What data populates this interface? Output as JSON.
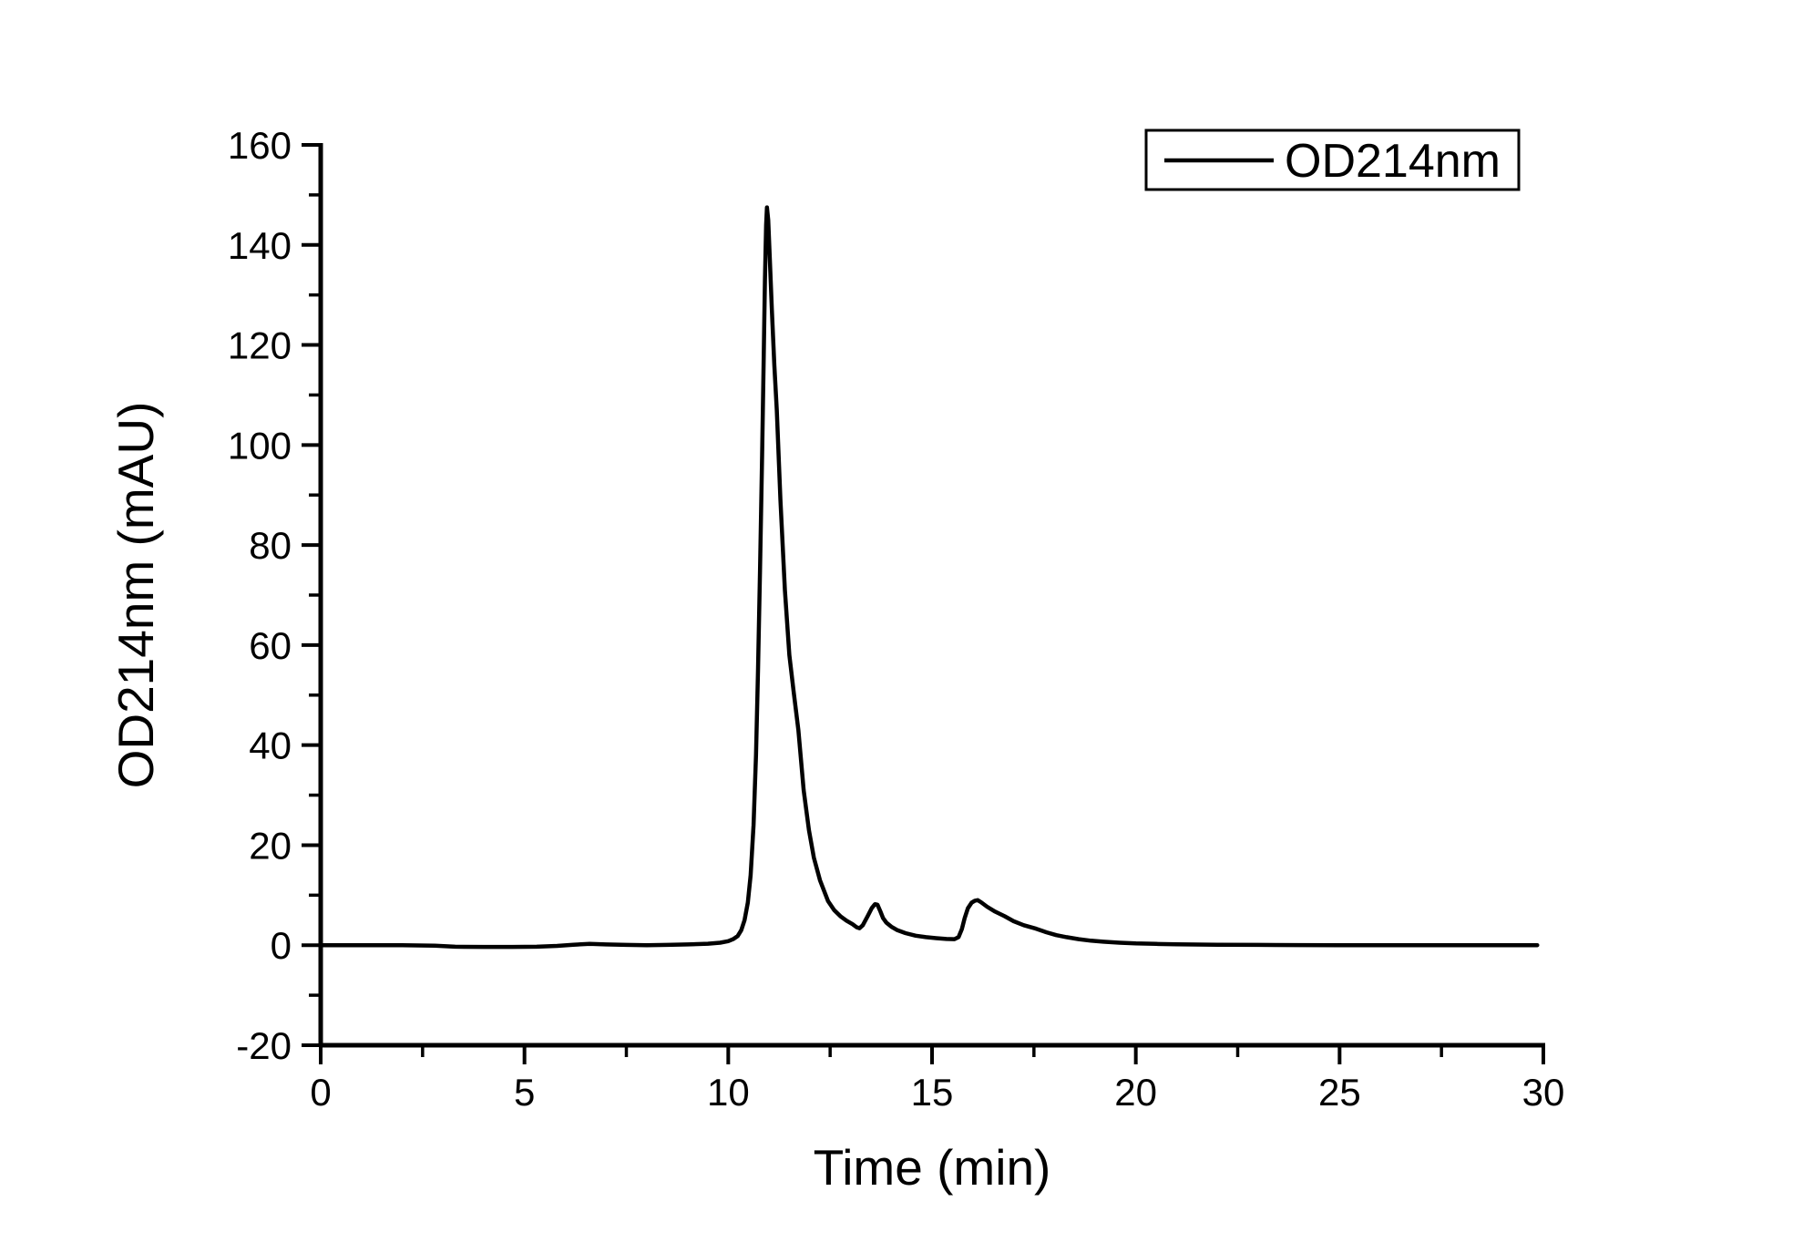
{
  "chart_data": {
    "type": "line",
    "title": "",
    "xlabel": "Time (min)",
    "ylabel": "OD214nm (mAU)",
    "xlim": [
      0,
      30
    ],
    "ylim": [
      -20,
      160
    ],
    "x_major_ticks": [
      0,
      5,
      10,
      15,
      20,
      25,
      30
    ],
    "x_minor_ticks": [
      2.5,
      7.5,
      12.5,
      17.5,
      22.5,
      27.5
    ],
    "y_major_ticks": [
      -20,
      0,
      20,
      40,
      60,
      80,
      100,
      120,
      140,
      160
    ],
    "y_minor_ticks": [
      -10,
      10,
      30,
      50,
      70,
      90,
      110,
      130,
      150
    ],
    "grid": false,
    "legend_position": "top-right",
    "line_color": "#000000",
    "background_color": "#ffffff",
    "peaks": [
      {
        "time_min": 10.95,
        "height_mAU": 147.5
      },
      {
        "time_min": 13.6,
        "height_mAU": 8.2
      },
      {
        "time_min": 16.1,
        "height_mAU": 9.0
      }
    ],
    "series": [
      {
        "name": "OD214nm",
        "color": "#000000",
        "points": [
          [
            0,
            0
          ],
          [
            1,
            0
          ],
          [
            2,
            0
          ],
          [
            2.8,
            -0.1
          ],
          [
            3.3,
            -0.3
          ],
          [
            4,
            -0.35
          ],
          [
            4.7,
            -0.35
          ],
          [
            5.3,
            -0.3
          ],
          [
            5.8,
            -0.15
          ],
          [
            6.2,
            0.1
          ],
          [
            6.6,
            0.25
          ],
          [
            7,
            0.15
          ],
          [
            7.5,
            0.05
          ],
          [
            8,
            0
          ],
          [
            8.5,
            0.05
          ],
          [
            9,
            0.15
          ],
          [
            9.5,
            0.3
          ],
          [
            9.8,
            0.5
          ],
          [
            10,
            0.8
          ],
          [
            10.12,
            1.2
          ],
          [
            10.23,
            1.8
          ],
          [
            10.32,
            3
          ],
          [
            10.4,
            5
          ],
          [
            10.48,
            8.5
          ],
          [
            10.55,
            14
          ],
          [
            10.62,
            24
          ],
          [
            10.68,
            38
          ],
          [
            10.73,
            55
          ],
          [
            10.78,
            75
          ],
          [
            10.83,
            98
          ],
          [
            10.87,
            118
          ],
          [
            10.9,
            133
          ],
          [
            10.93,
            144
          ],
          [
            10.95,
            147.5
          ],
          [
            10.98,
            145
          ],
          [
            11.02,
            137
          ],
          [
            11.07,
            127
          ],
          [
            11.13,
            116
          ],
          [
            11.19,
            107
          ],
          [
            11.28,
            89
          ],
          [
            11.39,
            71
          ],
          [
            11.5,
            58
          ],
          [
            11.6,
            51
          ],
          [
            11.72,
            43
          ],
          [
            11.85,
            31
          ],
          [
            11.98,
            23
          ],
          [
            12.1,
            17.5
          ],
          [
            12.25,
            13
          ],
          [
            12.45,
            8.8
          ],
          [
            12.6,
            7
          ],
          [
            12.75,
            5.8
          ],
          [
            12.9,
            4.9
          ],
          [
            13.05,
            4.2
          ],
          [
            13.15,
            3.6
          ],
          [
            13.22,
            3.4
          ],
          [
            13.3,
            4
          ],
          [
            13.42,
            5.8
          ],
          [
            13.52,
            7.4
          ],
          [
            13.6,
            8.2
          ],
          [
            13.66,
            8.1
          ],
          [
            13.73,
            6.8
          ],
          [
            13.8,
            5.4
          ],
          [
            13.88,
            4.5
          ],
          [
            14,
            3.7
          ],
          [
            14.15,
            3
          ],
          [
            14.35,
            2.4
          ],
          [
            14.6,
            1.9
          ],
          [
            14.85,
            1.6
          ],
          [
            15.1,
            1.4
          ],
          [
            15.35,
            1.25
          ],
          [
            15.55,
            1.2
          ],
          [
            15.65,
            1.6
          ],
          [
            15.73,
            3.2
          ],
          [
            15.8,
            5.4
          ],
          [
            15.88,
            7.4
          ],
          [
            15.97,
            8.5
          ],
          [
            16.05,
            8.9
          ],
          [
            16.12,
            9
          ],
          [
            16.2,
            8.6
          ],
          [
            16.35,
            7.7
          ],
          [
            16.55,
            6.7
          ],
          [
            16.78,
            5.8
          ],
          [
            17,
            4.8
          ],
          [
            17.25,
            4
          ],
          [
            17.55,
            3.3
          ],
          [
            17.8,
            2.6
          ],
          [
            18.05,
            2
          ],
          [
            18.3,
            1.6
          ],
          [
            18.6,
            1.2
          ],
          [
            18.9,
            0.9
          ],
          [
            19.2,
            0.7
          ],
          [
            19.6,
            0.5
          ],
          [
            20,
            0.35
          ],
          [
            20.5,
            0.25
          ],
          [
            21,
            0.18
          ],
          [
            22,
            0.1
          ],
          [
            23,
            0.05
          ],
          [
            24,
            0.02
          ],
          [
            25,
            0
          ],
          [
            26,
            0
          ],
          [
            27,
            0
          ],
          [
            28,
            0
          ],
          [
            29,
            0
          ],
          [
            29.85,
            0
          ]
        ]
      }
    ]
  }
}
